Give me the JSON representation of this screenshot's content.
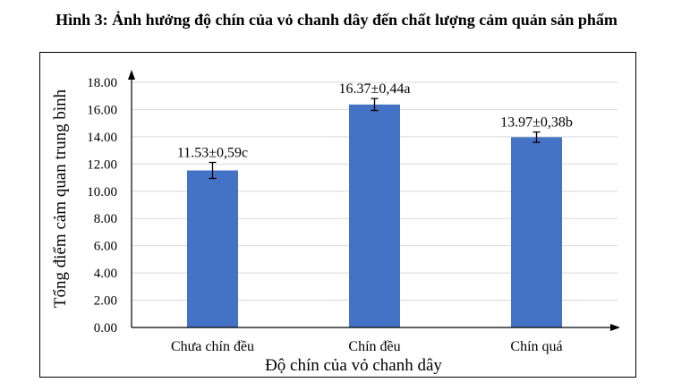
{
  "figure_title": "Hình 3: Ảnh hưởng độ chín của vỏ chanh dây đến chất lượng cảm quản sản phẩm",
  "colors": {
    "bar": "#4472c4",
    "grid": "#d9d9d9",
    "axis": "#000000"
  },
  "chart_data": {
    "type": "bar",
    "title": "",
    "xlabel": "Độ chín của vỏ chanh dây",
    "ylabel": "Tổng điểm cảm quan trung bình",
    "categories": [
      "Chưa chín đều",
      "Chín đều",
      "Chín quá"
    ],
    "values": [
      11.53,
      16.37,
      13.97
    ],
    "errors": [
      0.59,
      0.44,
      0.38
    ],
    "data_labels": [
      "11.53±0,59c",
      "16.37±0,44a",
      "13.97±0,38b"
    ],
    "ylim": [
      0,
      18
    ],
    "yticks": [
      0,
      2,
      4,
      6,
      8,
      10,
      12,
      14,
      16,
      18
    ],
    "ytick_labels": [
      "0.00",
      "2.00",
      "4.00",
      "6.00",
      "8.00",
      "10.00",
      "12.00",
      "14.00",
      "16.00",
      "18.00"
    ],
    "grid": true,
    "legend": "none"
  }
}
